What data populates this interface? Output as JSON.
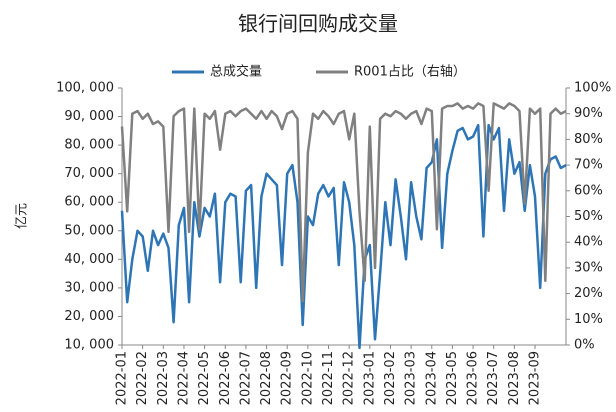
{
  "chart_data": {
    "type": "line",
    "title": "银行间回购成交量",
    "ylabel": "亿元",
    "categories": [
      "2022-01",
      null,
      null,
      null,
      "2022-02",
      null,
      null,
      null,
      "2022-03",
      null,
      null,
      null,
      "2022-04",
      null,
      null,
      null,
      "2022-05",
      null,
      null,
      null,
      "2022-06",
      null,
      null,
      null,
      "2022-07",
      null,
      null,
      null,
      "2022-08",
      null,
      null,
      null,
      "2022-09",
      null,
      null,
      null,
      "2022-10",
      null,
      null,
      null,
      "2022-11",
      null,
      null,
      null,
      "2022-12",
      null,
      null,
      null,
      "2023-01",
      null,
      null,
      null,
      "2023-02",
      null,
      null,
      null,
      "2023-03",
      null,
      null,
      null,
      "2023-04",
      null,
      null,
      null,
      "2023-05",
      null,
      null,
      null,
      "2023-06",
      null,
      null,
      null,
      "2023-07",
      null,
      null,
      null,
      "2023-08",
      null,
      null,
      null,
      "2023-09",
      null,
      null,
      null,
      null,
      null,
      null
    ],
    "series": [
      {
        "name": "总成交量",
        "color": "#2e75b6",
        "axis": "y",
        "values": [
          57000,
          25000,
          40000,
          50000,
          48000,
          36000,
          50000,
          45000,
          49000,
          44000,
          18000,
          52000,
          58000,
          25000,
          60000,
          48000,
          58000,
          55000,
          63000,
          32000,
          60000,
          63000,
          62000,
          32000,
          64000,
          66000,
          30000,
          62000,
          70000,
          68000,
          66000,
          38000,
          70000,
          73000,
          60000,
          17000,
          55000,
          52000,
          63000,
          66000,
          62000,
          65000,
          38000,
          67000,
          60000,
          45000,
          9000,
          40000,
          45000,
          12000,
          35000,
          60000,
          45000,
          68000,
          55000,
          40000,
          67000,
          55000,
          47000,
          72000,
          74000,
          82000,
          44000,
          70000,
          78000,
          85000,
          86000,
          82000,
          83000,
          87000,
          48000,
          87000,
          82000,
          86000,
          57000,
          82000,
          70000,
          74000,
          57000,
          73000,
          62000,
          30000,
          70000,
          75000,
          76000,
          72000,
          73000
        ]
      },
      {
        "name": "R001占比（右轴）",
        "color": "#808080",
        "axis": "y2",
        "values": [
          85,
          52,
          90,
          91,
          88,
          90,
          86,
          87,
          85,
          44,
          89,
          91,
          92,
          44,
          92,
          45,
          90,
          88,
          91,
          76,
          90,
          91,
          89,
          91,
          92,
          90,
          88,
          91,
          88,
          91,
          89,
          84,
          90,
          91,
          88,
          17,
          75,
          90,
          88,
          91,
          89,
          86,
          90,
          91,
          80,
          90,
          52,
          25,
          85,
          30,
          88,
          90,
          89,
          91,
          90,
          88,
          90,
          91,
          86,
          92,
          91,
          45,
          92,
          93,
          93,
          94,
          92,
          93,
          92,
          94,
          93,
          60,
          94,
          93,
          92,
          94,
          93,
          91,
          55,
          92,
          90,
          92,
          25,
          90,
          92,
          90,
          91
        ]
      }
    ],
    "ylim": [
      10000,
      100000
    ],
    "yticks": [
      {
        "value": 10000,
        "label": "10, 000"
      },
      {
        "value": 20000,
        "label": "20, 000"
      },
      {
        "value": 30000,
        "label": "30, 000"
      },
      {
        "value": 40000,
        "label": "40, 000"
      },
      {
        "value": 50000,
        "label": "50, 000"
      },
      {
        "value": 60000,
        "label": "60, 000"
      },
      {
        "value": 70000,
        "label": "70, 000"
      },
      {
        "value": 80000,
        "label": "80, 000"
      },
      {
        "value": 90000,
        "label": "90, 000"
      },
      {
        "value": 100000,
        "label": "100, 000"
      }
    ],
    "y2lim": [
      0,
      100
    ],
    "y2ticks": [
      {
        "value": 0,
        "label": "0%"
      },
      {
        "value": 10,
        "label": "10%"
      },
      {
        "value": 20,
        "label": "20%"
      },
      {
        "value": 30,
        "label": "30%"
      },
      {
        "value": 40,
        "label": "40%"
      },
      {
        "value": 50,
        "label": "50%"
      },
      {
        "value": 60,
        "label": "60%"
      },
      {
        "value": 70,
        "label": "70%"
      },
      {
        "value": 80,
        "label": "80%"
      },
      {
        "value": 90,
        "label": "90%"
      },
      {
        "value": 100,
        "label": "100%"
      }
    ],
    "legend": "top"
  }
}
